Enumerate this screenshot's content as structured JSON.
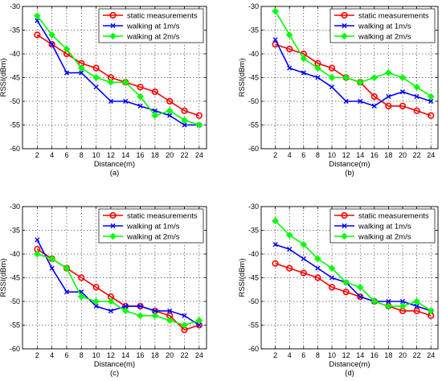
{
  "chart_data": [
    {
      "type": "line",
      "panel_label": "(a)",
      "xlabel": "Distance(m)",
      "ylabel": "RSSI(dBm)",
      "xlim": [
        0,
        25
      ],
      "ylim": [
        -60,
        -30
      ],
      "xticks": [
        2,
        4,
        6,
        8,
        10,
        12,
        14,
        16,
        18,
        20,
        22,
        24
      ],
      "yticks": [
        -30,
        -35,
        -40,
        -45,
        -50,
        -55,
        -60
      ],
      "grid": true,
      "legend_position": "top-right",
      "x": [
        2,
        4,
        6,
        8,
        10,
        12,
        14,
        16,
        18,
        20,
        22,
        24
      ],
      "series": [
        {
          "name": "static measurements",
          "color": "#ff0000",
          "marker": "circle",
          "values": [
            -36,
            -38,
            -40,
            -42,
            -43,
            -45,
            -46,
            -47,
            -48,
            -50,
            -52,
            -53
          ]
        },
        {
          "name": "walking at 1m/s",
          "color": "#0000ff",
          "marker": "x",
          "values": [
            -33,
            -38,
            -44,
            -44,
            -47,
            -50,
            -50,
            -51,
            -52,
            -53,
            -55,
            -55
          ]
        },
        {
          "name": "walking at 2m/s",
          "color": "#00ff00",
          "marker": "diamond",
          "values": [
            -32,
            -36,
            -39,
            -43,
            -45,
            -46,
            -46,
            -49,
            -53,
            -52,
            -54,
            -55
          ]
        }
      ]
    },
    {
      "type": "line",
      "panel_label": "(b)",
      "xlabel": "Distance(m)",
      "ylabel": "RSSI(dBm)",
      "xlim": [
        0,
        25
      ],
      "ylim": [
        -60,
        -30
      ],
      "xticks": [
        2,
        4,
        6,
        8,
        10,
        12,
        14,
        16,
        18,
        20,
        22,
        24
      ],
      "yticks": [
        -30,
        -35,
        -40,
        -45,
        -50,
        -55,
        -60
      ],
      "grid": true,
      "legend_position": "top-right",
      "x": [
        2,
        4,
        6,
        8,
        10,
        12,
        14,
        16,
        18,
        20,
        22,
        24
      ],
      "series": [
        {
          "name": "static measurements",
          "color": "#ff0000",
          "marker": "circle",
          "values": [
            -38,
            -39,
            -40,
            -42,
            -43,
            -45,
            -46,
            -49,
            -51,
            -51,
            -52,
            -53
          ]
        },
        {
          "name": "walking at 1m/s",
          "color": "#0000ff",
          "marker": "x",
          "values": [
            -37,
            -43,
            -44,
            -45,
            -47,
            -50,
            -50,
            -51,
            -49,
            -48,
            -49,
            -50
          ]
        },
        {
          "name": "walking at 2m/s",
          "color": "#00ff00",
          "marker": "diamond",
          "values": [
            -31,
            -36,
            -41,
            -43,
            -45,
            -45,
            -46,
            -45,
            -44,
            -45,
            -47,
            -49
          ]
        }
      ]
    },
    {
      "type": "line",
      "panel_label": "(c)",
      "xlabel": "Distance(m)",
      "ylabel": "RSSI(dBm)",
      "xlim": [
        0,
        25
      ],
      "ylim": [
        -60,
        -30
      ],
      "xticks": [
        2,
        4,
        6,
        8,
        10,
        12,
        14,
        16,
        18,
        20,
        22,
        24
      ],
      "yticks": [
        -30,
        -35,
        -40,
        -45,
        -50,
        -55,
        -60
      ],
      "grid": true,
      "legend_position": "top-right",
      "x": [
        2,
        4,
        6,
        8,
        10,
        12,
        14,
        16,
        18,
        20,
        22,
        24
      ],
      "series": [
        {
          "name": "static measurements",
          "color": "#ff0000",
          "marker": "circle",
          "values": [
            -39,
            -41,
            -43,
            -45,
            -47,
            -49,
            -51,
            -51,
            -52,
            -53,
            -56,
            -55
          ]
        },
        {
          "name": "walking at 1m/s",
          "color": "#0000ff",
          "marker": "x",
          "values": [
            -37,
            -43,
            -48,
            -48,
            -51,
            -52,
            -51,
            -51,
            -52,
            -52,
            -53,
            -55
          ]
        },
        {
          "name": "walking at 2m/s",
          "color": "#00ff00",
          "marker": "diamond",
          "values": [
            -40,
            -41,
            -43,
            -49,
            -50,
            -50,
            -52,
            -53,
            -53,
            -54,
            -55,
            -54
          ]
        }
      ]
    },
    {
      "type": "line",
      "panel_label": "(d)",
      "xlabel": "Distance(m)",
      "ylabel": "RSSI(dBm)",
      "xlim": [
        0,
        25
      ],
      "ylim": [
        -60,
        -30
      ],
      "xticks": [
        2,
        4,
        6,
        8,
        10,
        12,
        14,
        16,
        18,
        20,
        22,
        24
      ],
      "yticks": [
        -30,
        -35,
        -40,
        -45,
        -50,
        -55,
        -60
      ],
      "grid": true,
      "legend_position": "top-right",
      "x": [
        2,
        4,
        6,
        8,
        10,
        12,
        14,
        16,
        18,
        20,
        22,
        24
      ],
      "series": [
        {
          "name": "static measurements",
          "color": "#ff0000",
          "marker": "circle",
          "values": [
            -42,
            -43,
            -44,
            -45,
            -47,
            -48,
            -49,
            -50,
            -51,
            -52,
            -52,
            -53
          ]
        },
        {
          "name": "walking at 1m/s",
          "color": "#0000ff",
          "marker": "x",
          "values": [
            -38,
            -39,
            -41,
            -43,
            -45,
            -46,
            -49,
            -50,
            -50,
            -50,
            -51,
            -52
          ]
        },
        {
          "name": "walking at 2m/s",
          "color": "#00ff00",
          "marker": "diamond",
          "values": [
            -33,
            -36,
            -38,
            -41,
            -43,
            -46,
            -47,
            -50,
            -51,
            -51,
            -50,
            -52
          ]
        }
      ]
    }
  ]
}
